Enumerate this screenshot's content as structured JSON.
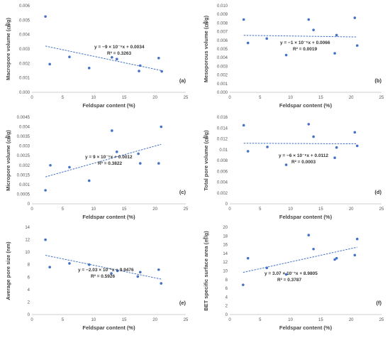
{
  "figure": {
    "title": ""
  },
  "chart_data": [
    {
      "type": "scatter",
      "panel_label": "(a)",
      "xlabel": "Feldspar content (%)",
      "ylabel": "Macropore volume (㎤/g)",
      "xlim": [
        0,
        25
      ],
      "xticks": [
        "0",
        "5",
        "10",
        "15",
        "20",
        "25"
      ],
      "ylim": [
        0,
        0.006
      ],
      "yticks": [
        "0.000",
        "0.001",
        "0.002",
        "0.003",
        "0.004",
        "0.005",
        "0.006"
      ],
      "grid": false,
      "trendline": {
        "slope": -9e-05,
        "intercept": 0.0034,
        "label": "y = −9 × 10⁻⁵x + 0.0034",
        "r2_label": "R² = 0.3263"
      },
      "x": [
        2.2,
        2.9,
        6.1,
        9.3,
        13.0,
        13.8,
        17.4,
        17.6,
        20.6,
        21.1
      ],
      "y": [
        0.00525,
        0.00195,
        0.00245,
        0.00168,
        0.00242,
        0.0023,
        0.00147,
        0.00185,
        0.00237,
        0.00145
      ],
      "color": "#4472C4"
    },
    {
      "type": "scatter",
      "panel_label": "(b)",
      "xlabel": "Feldspar content (%)",
      "ylabel": "Mesoporous volume (㎤/g)",
      "xlim": [
        0,
        25
      ],
      "xticks": [
        "0",
        "5",
        "10",
        "15",
        "20",
        "25"
      ],
      "ylim": [
        0,
        0.01
      ],
      "yticks": [
        "0.000",
        "0.001",
        "0.002",
        "0.003",
        "0.004",
        "0.005",
        "0.006",
        "0.007",
        "0.008",
        "0.009",
        "0.010"
      ],
      "grid": false,
      "trendline": {
        "slope": -1e-05,
        "intercept": 0.0066,
        "label": "y = −1 × 10⁻⁵x + 0.0066",
        "r2_label": "R² = 0.0019"
      },
      "x": [
        2.3,
        3.0,
        6.1,
        9.3,
        13.0,
        13.8,
        17.3,
        17.6,
        20.6,
        21.0
      ],
      "y": [
        0.0084,
        0.0057,
        0.0062,
        0.0043,
        0.0084,
        0.0072,
        0.0045,
        0.0066,
        0.0086,
        0.0054
      ],
      "color": "#4472C4"
    },
    {
      "type": "scatter",
      "panel_label": "(c)",
      "xlabel": "Feldspar content (%)",
      "ylabel": "Micropore volume (㎤/g)",
      "xlim": [
        0,
        25
      ],
      "xticks": [
        "0",
        "5",
        "10",
        "15",
        "20",
        "25"
      ],
      "ylim": [
        0,
        0.0045
      ],
      "yticks": [
        "0",
        "0.0005",
        "0.001",
        "0.0015",
        "0.002",
        "0.0025",
        "0.003",
        "0.0035",
        "0.004",
        "0.0045"
      ],
      "grid": false,
      "trendline": {
        "slope": 9e-05,
        "intercept": 0.0012,
        "label": "y = 9 × 10⁻⁵x + 0.0012",
        "r2_label": "R² = 0.3822"
      },
      "x": [
        2.2,
        3.0,
        6.1,
        9.3,
        13.0,
        13.8,
        17.3,
        17.6,
        20.6,
        21.0
      ],
      "y": [
        0.0007,
        0.002,
        0.0019,
        0.0012,
        0.0038,
        0.0027,
        0.0026,
        0.0021,
        0.0021,
        0.004
      ],
      "color": "#4472C4"
    },
    {
      "type": "scatter",
      "panel_label": "(d)",
      "xlabel": "Feldspar content (%)",
      "ylabel": "Total pore volume (㎤/g)",
      "xlim": [
        0,
        25
      ],
      "xticks": [
        "0",
        "5",
        "10",
        "15",
        "20",
        "25"
      ],
      "ylim": [
        0,
        0.016
      ],
      "yticks": [
        "0",
        "0.002",
        "0.004",
        "0.006",
        "0.008",
        "0.01",
        "0.012",
        "0.014",
        "0.016"
      ],
      "grid": false,
      "trendline": {
        "slope": -6e-06,
        "intercept": 0.0112,
        "label": "y = −6 × 10⁻⁶x + 0.0112",
        "r2_label": "R² = 0.0003"
      },
      "x": [
        2.3,
        3.0,
        6.2,
        9.3,
        13.0,
        13.8,
        17.3,
        17.6,
        20.6,
        21.0
      ],
      "y": [
        0.0145,
        0.0097,
        0.0105,
        0.0072,
        0.0147,
        0.0124,
        0.0085,
        0.0104,
        0.0132,
        0.0107
      ],
      "color": "#4472C4"
    },
    {
      "type": "scatter",
      "panel_label": "(e)",
      "xlabel": "Feldspar content (%)",
      "ylabel": "Average pore size (nm)",
      "xlim": [
        0,
        25
      ],
      "xticks": [
        "0",
        "5",
        "10",
        "15",
        "20",
        "25"
      ],
      "ylim": [
        0,
        14
      ],
      "yticks": [
        "0",
        "2",
        "4",
        "6",
        "8",
        "10",
        "12",
        "14"
      ],
      "grid": false,
      "trendline": {
        "slope": -0.203,
        "intercept": 9.9476,
        "label": "y = −2.03 × 10⁻¹x + 9.9476",
        "r2_label": "R² = 0.5926"
      },
      "x": [
        2.2,
        2.9,
        6.1,
        9.3,
        12.9,
        13.9,
        17.2,
        17.6,
        20.6,
        21.0
      ],
      "y": [
        12.0,
        7.6,
        8.2,
        8.0,
        6.6,
        7.0,
        6.1,
        6.8,
        7.2,
        5.0
      ],
      "color": "#4472C4"
    },
    {
      "type": "scatter",
      "panel_label": "(f)",
      "xlabel": "Feldspar content (%)",
      "ylabel": "BET specific surface area (㎡/g)",
      "xlim": [
        0,
        25
      ],
      "xticks": [
        "0",
        "5",
        "10",
        "15",
        "20",
        "25"
      ],
      "ylim": [
        0,
        20
      ],
      "yticks": [
        "0",
        "2",
        "4",
        "6",
        "8",
        "10",
        "12",
        "14",
        "16",
        "18",
        "20"
      ],
      "grid": false,
      "trendline": {
        "slope": 0.307,
        "intercept": 8.9805,
        "label": "y = 3.07 × 10⁻¹x + 8.9805",
        "r2_label": "R² = 0.3787"
      },
      "x": [
        2.2,
        3.0,
        6.1,
        9.3,
        13.0,
        13.8,
        17.3,
        17.6,
        20.6,
        21.0
      ],
      "y": [
        6.8,
        12.9,
        10.7,
        9.2,
        18.2,
        15.0,
        12.6,
        12.9,
        13.6,
        17.3
      ],
      "color": "#4472C4"
    }
  ]
}
